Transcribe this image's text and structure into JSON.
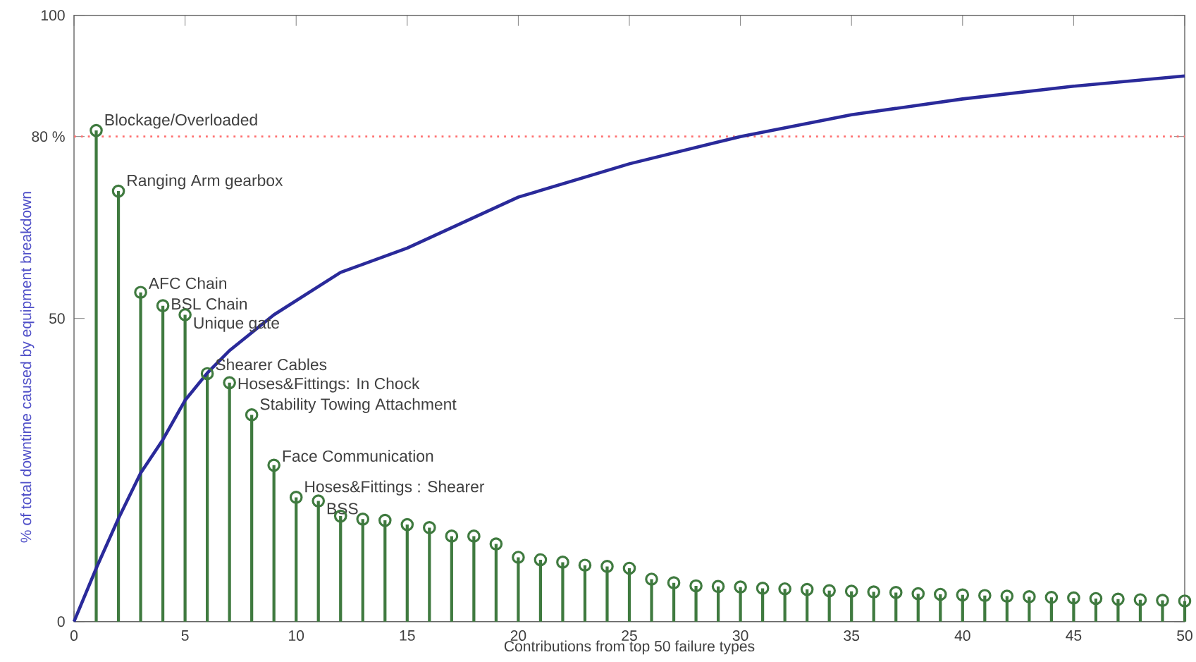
{
  "chart_data": {
    "type": "lollipop",
    "xlabel": "Contributions from top 50 failure types",
    "ylabel": "% of total downtime caused by equipment breakdown",
    "xlim": [
      0,
      50
    ],
    "xticks": [
      0,
      5,
      10,
      15,
      20,
      25,
      30,
      35,
      40,
      45,
      50
    ],
    "ylim": [
      0,
      100
    ],
    "yticks": [
      0,
      50,
      {
        "value": 80,
        "label": "80 %"
      },
      100
    ],
    "grid": false,
    "marker": "circle",
    "series": [
      {
        "color": "#3f7a3f",
        "x": [
          1,
          2,
          3,
          4,
          5,
          6,
          7,
          8,
          9,
          10,
          11,
          12,
          13,
          14,
          15,
          16,
          17,
          18,
          19,
          20,
          21,
          22,
          23,
          24,
          25,
          26,
          27,
          28,
          29,
          30,
          31,
          32,
          33,
          34,
          35,
          36,
          37,
          38,
          39,
          40,
          41,
          42,
          43,
          44,
          45,
          46,
          47,
          48,
          49,
          50
        ],
        "values": [
          81,
          71,
          54.3,
          52.1,
          50.6,
          40.9,
          39.4,
          34.1,
          25.8,
          20.5,
          19.9,
          17.4,
          16.9,
          16.7,
          16.0,
          15.5,
          14.1,
          14.1,
          12.8,
          10.6,
          10.2,
          9.8,
          9.3,
          9.1,
          8.8,
          7.0,
          6.4,
          5.9,
          5.8,
          5.7,
          5.5,
          5.4,
          5.3,
          5.1,
          5.0,
          4.9,
          4.8,
          4.6,
          4.5,
          4.4,
          4.3,
          4.2,
          4.1,
          4.0,
          3.9,
          3.8,
          3.7,
          3.6,
          3.5,
          3.4
        ]
      },
      {
        "type": "line",
        "color": "#2a2a9a",
        "marker": "none",
        "line_style": "solid",
        "x": [
          0,
          1,
          2,
          3,
          4,
          5,
          6,
          7,
          9,
          12,
          15,
          20,
          25,
          30,
          35,
          40,
          45,
          50
        ],
        "values": [
          0,
          8.8,
          17,
          24.5,
          30,
          36.5,
          41,
          44.7,
          50.6,
          57.6,
          61.6,
          70,
          75.5,
          80,
          83.6,
          86.2,
          88.3,
          90
        ]
      }
    ],
    "ref_lines": [
      {
        "axis": "y",
        "value": 80,
        "color": "#ff7070",
        "line_style": "dotted"
      }
    ],
    "annotations": [
      {
        "text": "Blockage/Overloaded",
        "x": 1,
        "y": 81
      },
      {
        "text": "Ranging Arm gearbox",
        "x": 2,
        "y": 71
      },
      {
        "text": "AFC Chain",
        "x": 3,
        "y": 54.3
      },
      {
        "text": "BSL Chain",
        "x": 4,
        "y": 52.1
      },
      {
        "text": "Unique gate",
        "x": 5,
        "y": 50.6
      },
      {
        "text": "Shearer Cables",
        "x": 6,
        "y": 40.9
      },
      {
        "text": "Hoses&Fittings: In Chock",
        "x": 7,
        "y": 39.4
      },
      {
        "text": "Stability Towing Attachment",
        "x": 8,
        "y": 34.1
      },
      {
        "text": "Face Communication",
        "x": 9,
        "y": 25.8
      },
      {
        "text": "Hoses&Fittings : Shearer",
        "x": 10,
        "y": 20.5
      },
      {
        "text": "BSS",
        "x": 11,
        "y": 19.9
      }
    ]
  }
}
